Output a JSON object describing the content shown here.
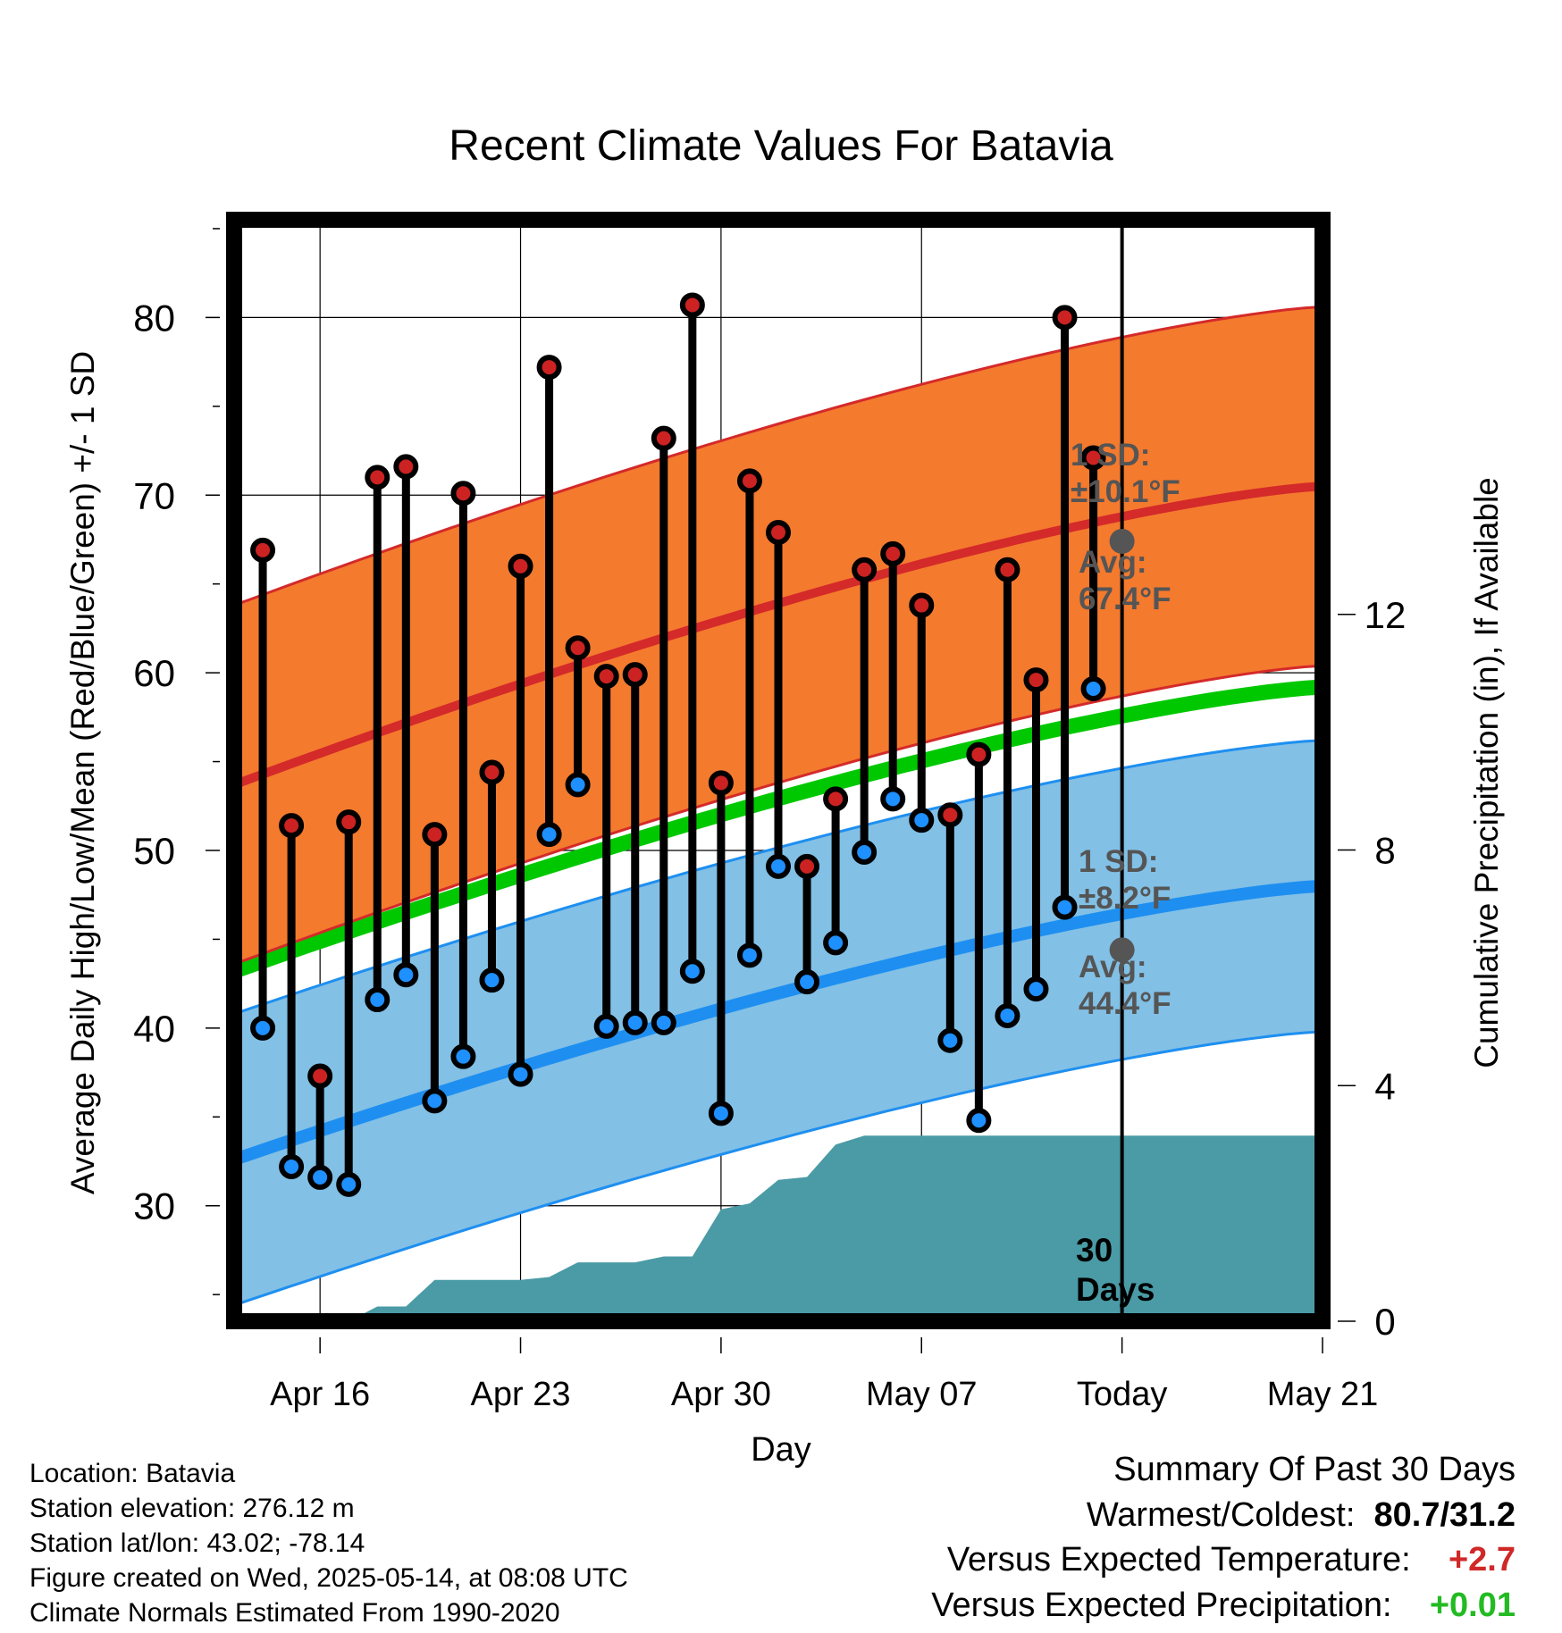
{
  "chart_data": {
    "type": "line",
    "title": "Recent Climate Values For Batavia",
    "xlabel": "Day",
    "ylabel": "Average Daily High/Low/Mean (Red/Blue/Green) +/- 1 SD",
    "y2label": "Cumulative Precipitation (in), If Available",
    "ylim": [
      23.5,
      85.5
    ],
    "y_ticks": [
      30,
      40,
      50,
      60,
      70,
      80
    ],
    "y2lim": [
      0,
      18.7
    ],
    "y2_ticks": [
      0,
      4,
      8,
      12
    ],
    "x_days_from_apr16": [
      -3,
      35
    ],
    "x_ticks": [
      {
        "day": 0,
        "label": "Apr 16"
      },
      {
        "day": 7,
        "label": "Apr 23"
      },
      {
        "day": 14,
        "label": "Apr 30"
      },
      {
        "day": 21,
        "label": "May 07"
      },
      {
        "day": 28,
        "label": "Today"
      },
      {
        "day": 35,
        "label": "May 21"
      }
    ],
    "today_day": 28,
    "today_label": "30\nDays",
    "normal_high": {
      "start": 53.7,
      "end": 70.5,
      "sd": 10.1,
      "sd_label": "1 SD:\n±10.1°F",
      "avg_label": "Avg:\n67.4°F",
      "today_value": 67.4
    },
    "normal_low": {
      "start": 32.6,
      "end": 48.0,
      "sd": 8.2,
      "sd_label": "1 SD:\n±8.2°F",
      "avg_label": "Avg:\n44.4°F",
      "today_value": 44.4
    },
    "normal_mean": {
      "start": 43.2,
      "end": 59.2
    },
    "daily_obs": [
      {
        "day": -2,
        "high": 66.9,
        "low": 40.0
      },
      {
        "day": -1,
        "high": 51.4,
        "low": 32.2
      },
      {
        "day": 0,
        "high": 37.3,
        "low": 31.6
      },
      {
        "day": 1,
        "high": 51.6,
        "low": 31.2
      },
      {
        "day": 2,
        "high": 71.0,
        "low": 41.6
      },
      {
        "day": 3,
        "high": 71.6,
        "low": 43.0
      },
      {
        "day": 4,
        "high": 50.9,
        "low": 35.9
      },
      {
        "day": 5,
        "high": 70.1,
        "low": 38.4
      },
      {
        "day": 6,
        "high": 54.4,
        "low": 42.7
      },
      {
        "day": 7,
        "high": 66.0,
        "low": 37.4
      },
      {
        "day": 8,
        "high": 77.2,
        "low": 50.9
      },
      {
        "day": 9,
        "high": 61.4,
        "low": 53.7
      },
      {
        "day": 10,
        "high": 59.8,
        "low": 40.1
      },
      {
        "day": 11,
        "high": 59.9,
        "low": 40.3
      },
      {
        "day": 12,
        "high": 73.2,
        "low": 40.3
      },
      {
        "day": 13,
        "high": 80.7,
        "low": 43.2
      },
      {
        "day": 14,
        "high": 53.8,
        "low": 35.2
      },
      {
        "day": 15,
        "high": 70.8,
        "low": 44.1
      },
      {
        "day": 16,
        "high": 67.9,
        "low": 49.1
      },
      {
        "day": 17,
        "high": 49.1,
        "low": 42.6
      },
      {
        "day": 18,
        "high": 52.9,
        "low": 44.8
      },
      {
        "day": 19,
        "high": 65.8,
        "low": 49.9
      },
      {
        "day": 20,
        "high": 66.7,
        "low": 52.9
      },
      {
        "day": 21,
        "high": 63.8,
        "low": 51.7
      },
      {
        "day": 22,
        "high": 52.0,
        "low": 39.3
      },
      {
        "day": 23,
        "high": 55.4,
        "low": 34.8
      },
      {
        "day": 24,
        "high": 65.8,
        "low": 40.7
      },
      {
        "day": 25,
        "high": 59.6,
        "low": 42.2
      },
      {
        "day": 26,
        "high": 80.0,
        "low": 46.8
      },
      {
        "day": 27,
        "high": 72.1,
        "low": 59.1
      }
    ],
    "precip_cumulative": {
      "days": [
        -3,
        -2.5,
        -1,
        0,
        1,
        2,
        3,
        4,
        5,
        6,
        7,
        8,
        9,
        10,
        11,
        12,
        13,
        14,
        15,
        16,
        17,
        18,
        19,
        20,
        21,
        22,
        28,
        35
      ],
      "values": [
        0,
        0,
        0,
        0,
        0,
        0.25,
        0.25,
        0.7,
        0.7,
        0.7,
        0.7,
        0.75,
        1.0,
        1.0,
        1.0,
        1.1,
        1.1,
        1.9,
        2.0,
        2.4,
        2.45,
        3.0,
        3.15,
        3.15,
        3.15,
        3.15,
        3.15,
        3.15
      ]
    }
  },
  "info": [
    "Location: Batavia",
    "Station elevation: 276.12 m",
    "Station lat/lon: 43.02; -78.14",
    "Figure created on Wed, 2025-05-14, at 08:08 UTC",
    "Climate Normals Estimated From 1990-2020"
  ],
  "summary": {
    "heading": "Summary Of Past 30 Days",
    "warm_cold_label": "Warmest/Coldest:",
    "warm_cold_value": "80.7/31.2",
    "temp_label": "Versus Expected Temperature:",
    "temp_value": "+2.7",
    "precip_label": "Versus Expected Precipitation:",
    "precip_value": "+0.01"
  },
  "colors": {
    "high_band": "#f47a2e",
    "high_line": "#d42a2a",
    "low_band": "#82c0e6",
    "low_line": "#1e8ff0",
    "mean_line": "#00c800",
    "precip": "#4a9ba6",
    "high_dot": "#cc2222",
    "low_dot": "#1e90ff",
    "annotation": "#555555",
    "warm": "#d02828",
    "wet": "#22bb22"
  }
}
